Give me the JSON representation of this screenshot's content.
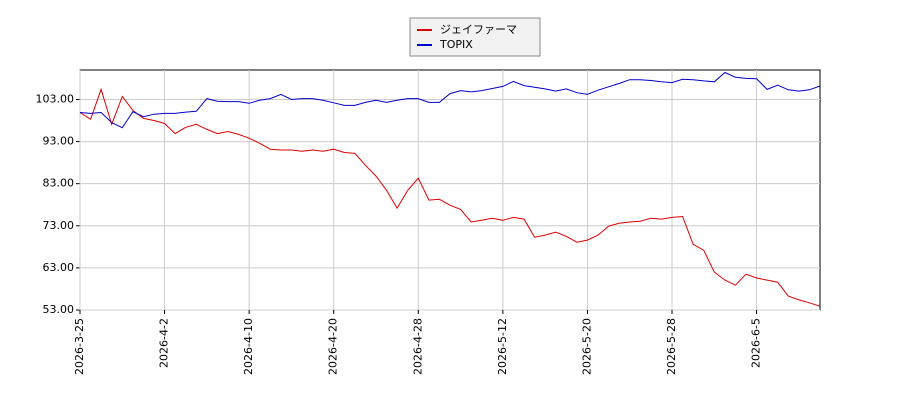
{
  "chart_data": {
    "type": "line",
    "categories": [
      "2026-3-25",
      null,
      null,
      null,
      null,
      null,
      null,
      null,
      "2026-4-2",
      null,
      null,
      null,
      null,
      null,
      null,
      null,
      "2026-4-10",
      null,
      null,
      null,
      null,
      null,
      null,
      null,
      "2026-4-20",
      null,
      null,
      null,
      null,
      null,
      null,
      null,
      "2026-4-28",
      null,
      null,
      null,
      null,
      null,
      null,
      null,
      "2026-5-12",
      null,
      null,
      null,
      null,
      null,
      null,
      null,
      "2026-5-20",
      null,
      null,
      null,
      null,
      null,
      null,
      null,
      "2026-5-28",
      null,
      null,
      null,
      null,
      null,
      null,
      null,
      "2026-6-5",
      null,
      null,
      null,
      null,
      null,
      null
    ],
    "series": [
      {
        "name": "ジェイファーマ",
        "color": "#dd0000",
        "values": [
          99.9,
          98.3,
          105.4,
          97.1,
          103.7,
          100.4,
          98.5,
          98.0,
          97.3,
          94.9,
          96.4,
          97.1,
          95.9,
          94.9,
          95.4,
          94.7,
          93.8,
          92.6,
          91.2,
          91.0,
          91.0,
          90.7,
          91.0,
          90.7,
          91.2,
          90.4,
          90.2,
          87.4,
          84.8,
          81.4,
          77.2,
          81.4,
          84.3,
          79.1,
          79.3,
          77.9,
          76.9,
          73.9,
          74.3,
          74.8,
          74.3,
          75.0,
          74.6,
          70.3,
          70.8,
          71.5,
          70.5,
          69.1,
          69.6,
          70.8,
          72.9,
          73.6,
          73.9,
          74.1,
          74.8,
          74.6,
          75.0,
          75.2,
          68.6,
          67.2,
          62.0,
          60.1,
          58.9,
          61.5,
          60.6,
          60.1,
          59.6,
          56.3,
          55.4,
          54.7,
          53.9
        ]
      },
      {
        "name": "TOPIX",
        "color": "#0000cc",
        "values": [
          99.9,
          99.7,
          99.9,
          97.5,
          96.3,
          100.1,
          98.9,
          99.5,
          99.7,
          99.7,
          100.0,
          100.2,
          103.2,
          102.6,
          102.5,
          102.5,
          102.1,
          102.8,
          103.2,
          104.2,
          103.0,
          103.2,
          103.2,
          102.8,
          102.2,
          101.6,
          101.6,
          102.3,
          102.8,
          102.3,
          102.8,
          103.2,
          103.2,
          102.3,
          102.3,
          104.4,
          105.1,
          104.8,
          105.1,
          105.6,
          106.1,
          107.3,
          106.3,
          105.9,
          105.5,
          105.0,
          105.5,
          104.6,
          104.2,
          105.2,
          106.0,
          106.8,
          107.7,
          107.7,
          107.5,
          107.2,
          107.0,
          107.8,
          107.7,
          107.4,
          107.2,
          109.4,
          108.3,
          108.0,
          107.9,
          105.4,
          106.4,
          105.3,
          105.0,
          105.3,
          106.2
        ]
      }
    ],
    "ylim": [
      53,
      110
    ],
    "yticks": [
      {
        "value": 53,
        "label": "53.00"
      },
      {
        "value": 63,
        "label": "63.00"
      },
      {
        "value": 73,
        "label": "73.00"
      },
      {
        "value": 83,
        "label": "83.00"
      },
      {
        "value": 93,
        "label": "93.00"
      },
      {
        "value": 103,
        "label": "103.00"
      }
    ],
    "grid": true
  }
}
